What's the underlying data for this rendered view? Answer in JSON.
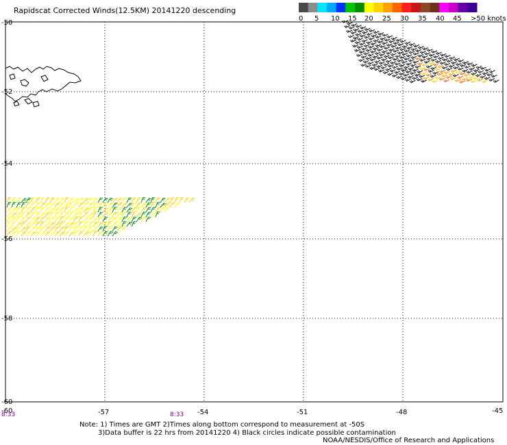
{
  "title": "Rapidscat Corrected Winds(12.5KM) 20141220 descending",
  "legend": {
    "colors": [
      "#4a4a4a",
      "#8c8c8c",
      "#00e6ff",
      "#00a8ff",
      "#0032ff",
      "#00c800",
      "#008c00",
      "#ffff00",
      "#ffd200",
      "#ffa000",
      "#ff6400",
      "#ff1e1e",
      "#c81414",
      "#8c4628",
      "#6e3218",
      "#ff00ff",
      "#c800c8",
      "#6400aa",
      "#3c0096"
    ],
    "labels": [
      "0",
      "5",
      "10",
      "15",
      "20",
      "25",
      "30",
      "35",
      "40",
      "45",
      ">50 knots"
    ]
  },
  "map": {
    "lon_ticks": [
      "-60",
      "-57",
      "-54",
      "-51",
      "-48",
      "-45"
    ],
    "lat_ticks": [
      "-50",
      "-52",
      "-54",
      "-56",
      "-58",
      "-60"
    ],
    "time_labels": [
      "8:33",
      "8:33"
    ]
  },
  "notes": {
    "line1": "Note: 1) Times are GMT 2)Times along bottom correspond to measurement at -50S",
    "line2": "3)Data buffer is 22 hrs from 20141220 4) Black circles indicate possible contamination",
    "credit": "NOAA/NESDIS/Office of Research and Applications"
  },
  "swaths": [
    {
      "area": "southwest",
      "wind_knots": "15-25",
      "colors": [
        "#ffff00",
        "#ffd200",
        "#008c00"
      ]
    },
    {
      "area": "northeast",
      "wind_knots": "20-40",
      "colors": [
        "#000000",
        "#ffd200",
        "#ffa000",
        "#ff6400"
      ]
    }
  ]
}
